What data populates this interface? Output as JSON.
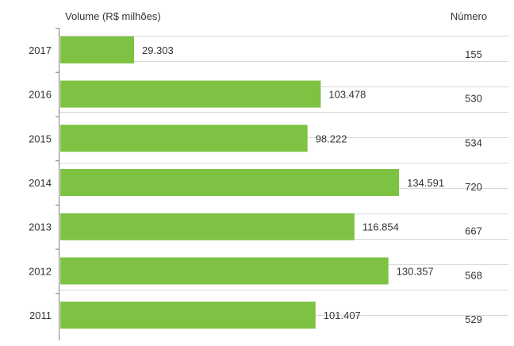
{
  "chart_data": {
    "type": "bar",
    "orientation": "horizontal",
    "ylabel": "Volume (R$ milhões)",
    "secondary_label": "Número",
    "categories": [
      "2017",
      "2016",
      "2015",
      "2014",
      "2013",
      "2012",
      "2011"
    ],
    "values": [
      29303,
      103478,
      98222,
      134591,
      116854,
      130357,
      101407
    ],
    "value_labels": [
      "29.303",
      "103.478",
      "98.222",
      "134.591",
      "116.854",
      "130.357",
      "101.407"
    ],
    "counts": [
      "155",
      "530",
      "534",
      "720",
      "667",
      "568",
      "529"
    ],
    "xlim": [
      0,
      150000
    ],
    "grid": true,
    "bar_color": "#7dc242",
    "grid_color": "#d9d9d9",
    "axis_color": "#7f7f7f"
  }
}
